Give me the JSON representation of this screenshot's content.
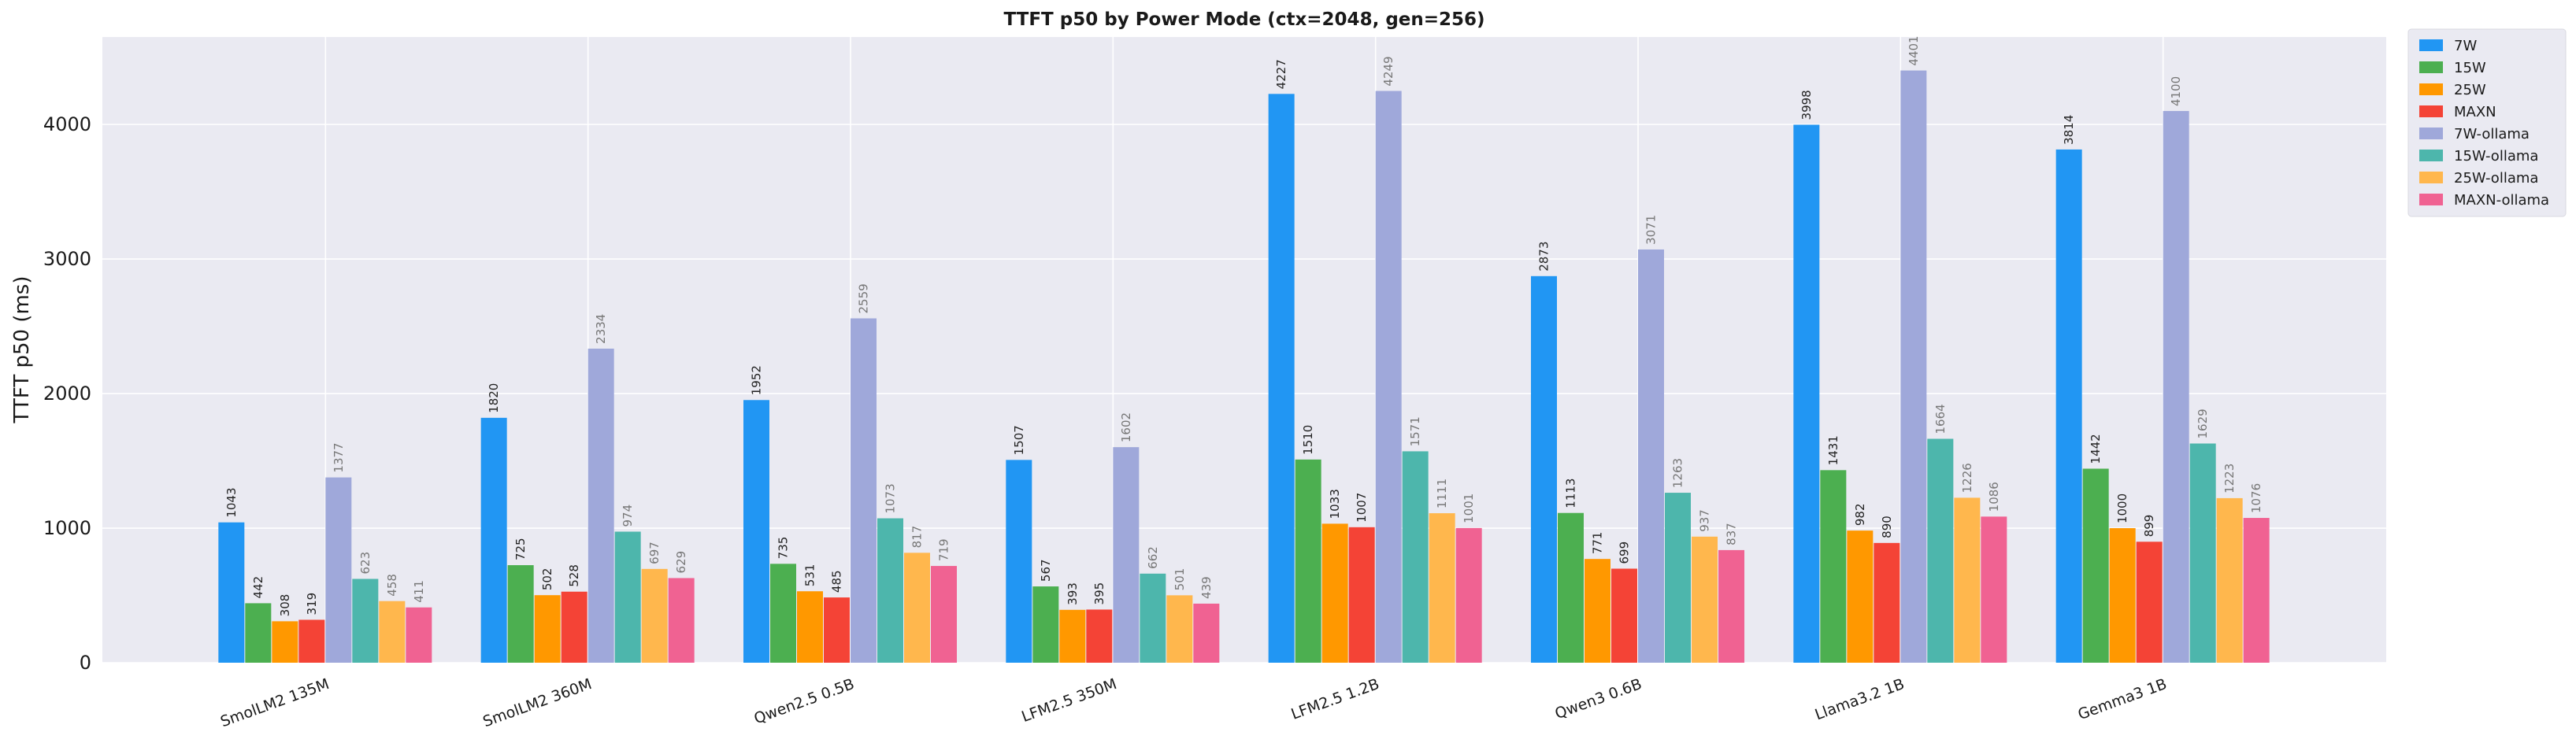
{
  "chart_data": {
    "type": "bar",
    "title": "TTFT p50 by Power Mode (ctx=2048, gen=256)",
    "xlabel": "",
    "ylabel": "TTFT p50 (ms)",
    "ylim": [
      0,
      4650
    ],
    "yticks": [
      0,
      1000,
      2000,
      3000,
      4000
    ],
    "grid": true,
    "legend_position": "outside-top-right",
    "categories": [
      "SmolLM2 135M",
      "SmolLM2 360M",
      "Qwen2.5 0.5B",
      "LFM2.5 350M",
      "LFM2.5 1.2B",
      "Qwen3 0.6B",
      "Llama3.2 1B",
      "Gemma3 1B"
    ],
    "series": [
      {
        "name": "7W",
        "color": "#2196f3",
        "label_color": "#222222",
        "values": [
          1043,
          1820,
          1952,
          1507,
          4227,
          2873,
          3998,
          3814
        ]
      },
      {
        "name": "15W",
        "color": "#4caf50",
        "label_color": "#222222",
        "values": [
          442,
          725,
          735,
          567,
          1510,
          1113,
          1431,
          1442
        ]
      },
      {
        "name": "25W",
        "color": "#ff9800",
        "label_color": "#222222",
        "values": [
          308,
          502,
          531,
          393,
          1033,
          771,
          982,
          1000
        ]
      },
      {
        "name": "MAXN",
        "color": "#f44336",
        "label_color": "#222222",
        "values": [
          319,
          528,
          485,
          395,
          1007,
          699,
          890,
          899
        ]
      },
      {
        "name": "7W-ollama",
        "color": "#9fa8da",
        "label_color": "#777777",
        "values": [
          1377,
          2334,
          2559,
          1602,
          4249,
          3071,
          4401,
          4100
        ]
      },
      {
        "name": "15W-ollama",
        "color": "#4db6ac",
        "label_color": "#777777",
        "values": [
          623,
          974,
          1073,
          662,
          1571,
          1263,
          1664,
          1629
        ]
      },
      {
        "name": "25W-ollama",
        "color": "#ffb74d",
        "label_color": "#777777",
        "values": [
          458,
          697,
          817,
          501,
          1111,
          937,
          1226,
          1223
        ]
      },
      {
        "name": "MAXN-ollama",
        "color": "#f06292",
        "label_color": "#777777",
        "values": [
          411,
          629,
          719,
          439,
          1001,
          837,
          1086,
          1076
        ]
      }
    ]
  }
}
